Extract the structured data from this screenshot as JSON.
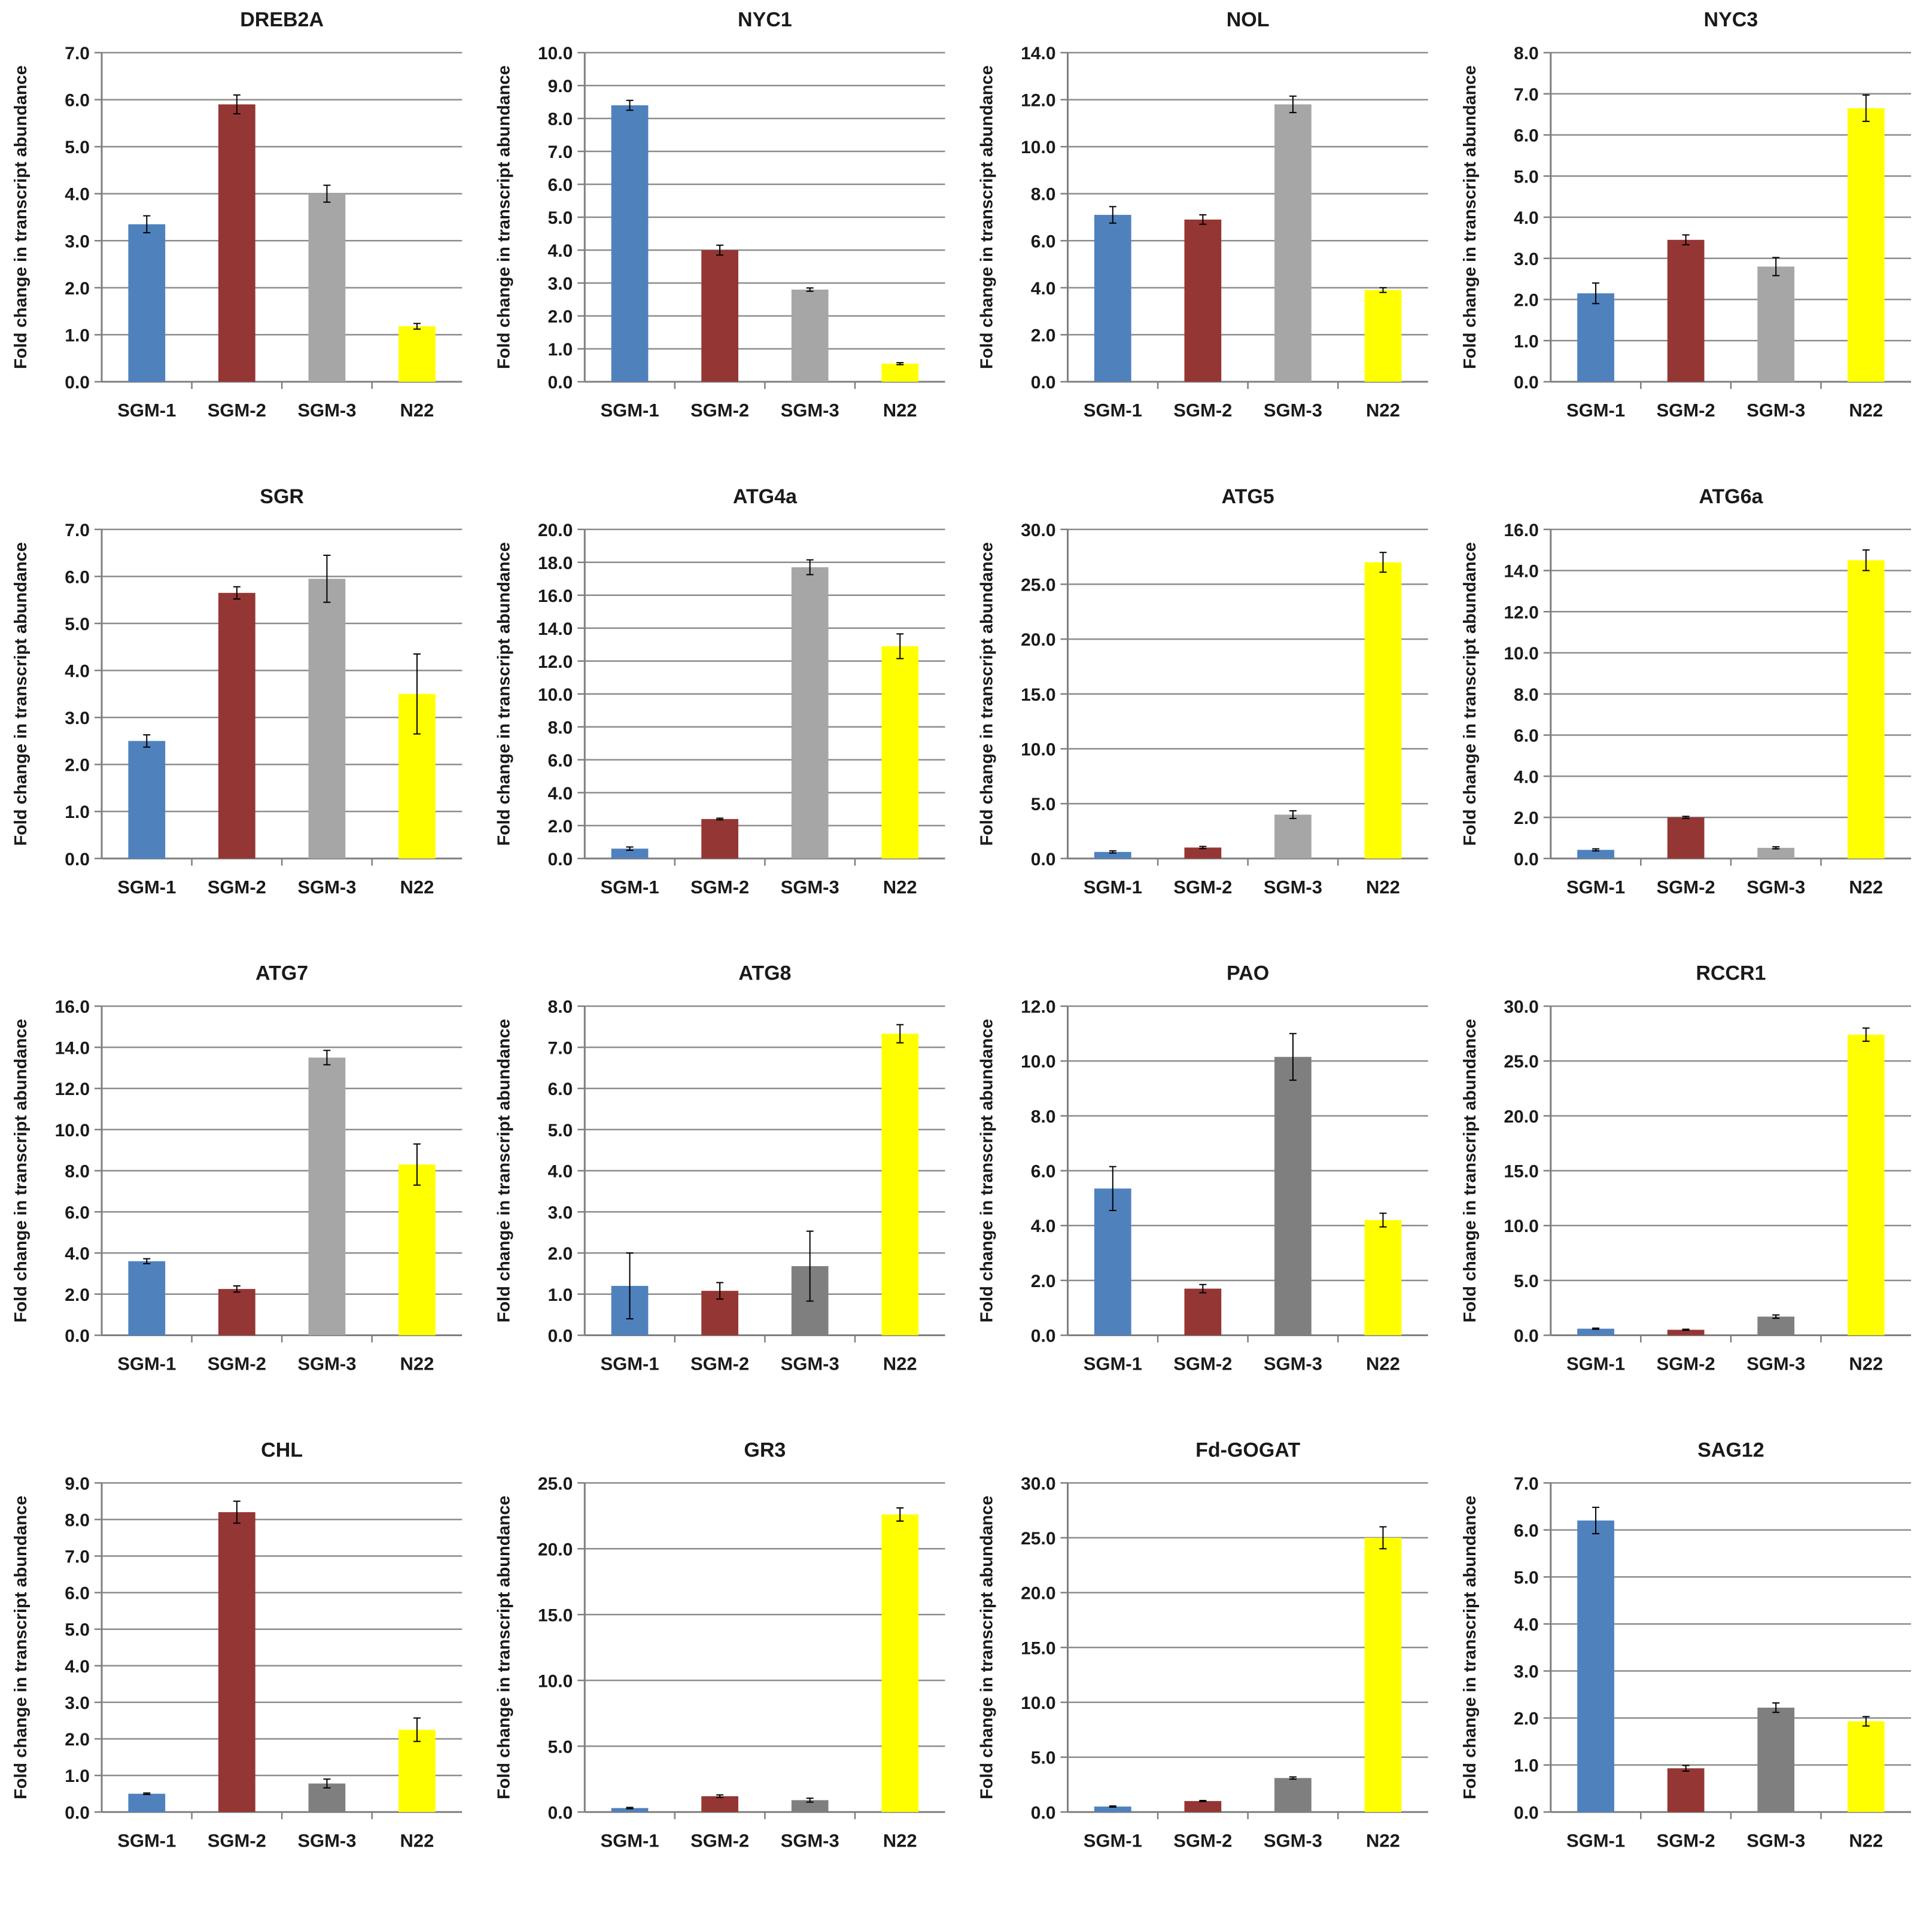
{
  "figure_caption": "",
  "colors": {
    "SGM-1": "#4F81BD",
    "SGM-2": "#943634",
    "SGM-3_light": "#A6A6A6",
    "SGM-3_dark": "#7F7F7F",
    "N22": "#FFFF00",
    "gridline": "#8C8C8C",
    "axis": "#7F7F7F",
    "text": "#1A1A1A"
  },
  "chart_data": [
    {
      "type": "bar",
      "title": "DREB2A",
      "ylabel": "Fold change in transcript abundance",
      "categories": [
        "SGM-1",
        "SGM-2",
        "SGM-3",
        "N22"
      ],
      "values": [
        3.35,
        5.9,
        4.0,
        1.18
      ],
      "errors": [
        0.18,
        0.2,
        0.18,
        0.06
      ],
      "ylim": [
        0,
        7
      ],
      "ystep": 1,
      "sgm3_color": "light"
    },
    {
      "type": "bar",
      "title": "NYC1",
      "ylabel": "Fold change in transcript abundance",
      "categories": [
        "SGM-1",
        "SGM-2",
        "SGM-3",
        "N22"
      ],
      "values": [
        8.4,
        4.0,
        2.8,
        0.55
      ],
      "errors": [
        0.15,
        0.15,
        0.05,
        0.03
      ],
      "ylim": [
        0,
        10
      ],
      "ystep": 1,
      "sgm3_color": "light"
    },
    {
      "type": "bar",
      "title": "NOL",
      "ylabel": "Fold change in transcript abundance",
      "categories": [
        "SGM-1",
        "SGM-2",
        "SGM-3",
        "N22"
      ],
      "values": [
        7.1,
        6.9,
        11.8,
        3.9
      ],
      "errors": [
        0.35,
        0.2,
        0.35,
        0.1
      ],
      "ylim": [
        0,
        14
      ],
      "ystep": 2,
      "sgm3_color": "light"
    },
    {
      "type": "bar",
      "title": "NYC3",
      "ylabel": "Fold change in transcript abundance",
      "categories": [
        "SGM-1",
        "SGM-2",
        "SGM-3",
        "N22"
      ],
      "values": [
        2.15,
        3.45,
        2.8,
        6.65
      ],
      "errors": [
        0.25,
        0.12,
        0.22,
        0.32
      ],
      "ylim": [
        0,
        8
      ],
      "ystep": 1,
      "sgm3_color": "light"
    },
    {
      "type": "bar",
      "title": "SGR",
      "ylabel": "Fold change in transcript abundance",
      "categories": [
        "SGM-1",
        "SGM-2",
        "SGM-3",
        "N22"
      ],
      "values": [
        2.5,
        5.65,
        5.95,
        3.5
      ],
      "errors": [
        0.13,
        0.13,
        0.5,
        0.85
      ],
      "ylim": [
        0,
        7
      ],
      "ystep": 1,
      "sgm3_color": "light"
    },
    {
      "type": "bar",
      "title": "ATG4a",
      "ylabel": "Fold change in transcript abundance",
      "categories": [
        "SGM-1",
        "SGM-2",
        "SGM-3",
        "N22"
      ],
      "values": [
        0.6,
        2.4,
        17.7,
        12.9
      ],
      "errors": [
        0.1,
        0.05,
        0.45,
        0.75
      ],
      "ylim": [
        0,
        20
      ],
      "ystep": 2,
      "sgm3_color": "light"
    },
    {
      "type": "bar",
      "title": "ATG5",
      "ylabel": "Fold change in transcript abundance",
      "categories": [
        "SGM-1",
        "SGM-2",
        "SGM-3",
        "N22"
      ],
      "values": [
        0.6,
        1.0,
        4.0,
        27.0
      ],
      "errors": [
        0.1,
        0.1,
        0.35,
        0.9
      ],
      "ylim": [
        0,
        30
      ],
      "ystep": 5,
      "sgm3_color": "light"
    },
    {
      "type": "bar",
      "title": "ATG6a",
      "ylabel": "Fold change in transcript abundance",
      "categories": [
        "SGM-1",
        "SGM-2",
        "SGM-3",
        "N22"
      ],
      "values": [
        0.42,
        2.0,
        0.52,
        14.5
      ],
      "errors": [
        0.05,
        0.05,
        0.05,
        0.5
      ],
      "ylim": [
        0,
        16
      ],
      "ystep": 2,
      "sgm3_color": "light"
    },
    {
      "type": "bar",
      "title": "ATG7",
      "ylabel": "Fold change in transcript abundance",
      "categories": [
        "SGM-1",
        "SGM-2",
        "SGM-3",
        "N22"
      ],
      "values": [
        3.6,
        2.25,
        13.5,
        8.3
      ],
      "errors": [
        0.12,
        0.15,
        0.35,
        1.0
      ],
      "ylim": [
        0,
        16
      ],
      "ystep": 2,
      "sgm3_color": "light"
    },
    {
      "type": "bar",
      "title": "ATG8",
      "ylabel": "Fold change in transcript abundance",
      "categories": [
        "SGM-1",
        "SGM-2",
        "SGM-3",
        "N22"
      ],
      "values": [
        1.2,
        1.08,
        1.68,
        7.33
      ],
      "errors": [
        0.8,
        0.2,
        0.85,
        0.22
      ],
      "ylim": [
        0,
        8
      ],
      "ystep": 1,
      "sgm3_color": "dark"
    },
    {
      "type": "bar",
      "title": "PAO",
      "ylabel": "Fold change in transcript abundance",
      "categories": [
        "SGM-1",
        "SGM-2",
        "SGM-3",
        "N22"
      ],
      "values": [
        5.35,
        1.7,
        10.15,
        4.2
      ],
      "errors": [
        0.8,
        0.15,
        0.85,
        0.25
      ],
      "ylim": [
        0,
        12
      ],
      "ystep": 2,
      "sgm3_color": "dark"
    },
    {
      "type": "bar",
      "title": "RCCR1",
      "ylabel": "Fold change in transcript abundance",
      "categories": [
        "SGM-1",
        "SGM-2",
        "SGM-3",
        "N22"
      ],
      "values": [
        0.6,
        0.5,
        1.7,
        27.4
      ],
      "errors": [
        0.05,
        0.05,
        0.15,
        0.6
      ],
      "ylim": [
        0,
        30
      ],
      "ystep": 5,
      "sgm3_color": "dark"
    },
    {
      "type": "bar",
      "title": "CHL",
      "ylabel": "Fold change in transcript abundance",
      "categories": [
        "SGM-1",
        "SGM-2",
        "SGM-3",
        "N22"
      ],
      "values": [
        0.5,
        8.2,
        0.78,
        2.25
      ],
      "errors": [
        0.02,
        0.3,
        0.12,
        0.32
      ],
      "ylim": [
        0,
        9
      ],
      "ystep": 1,
      "sgm3_color": "dark"
    },
    {
      "type": "bar",
      "title": "GR3",
      "ylabel": "Fold change in transcript abundance",
      "categories": [
        "SGM-1",
        "SGM-2",
        "SGM-3",
        "N22"
      ],
      "values": [
        0.3,
        1.2,
        0.9,
        22.6
      ],
      "errors": [
        0.05,
        0.1,
        0.15,
        0.5
      ],
      "ylim": [
        0,
        25
      ],
      "ystep": 5,
      "sgm3_color": "dark"
    },
    {
      "type": "bar",
      "title": "Fd-GOGAT",
      "ylabel": "Fold change in transcript abundance",
      "categories": [
        "SGM-1",
        "SGM-2",
        "SGM-3",
        "N22"
      ],
      "values": [
        0.5,
        1.0,
        3.1,
        25.0
      ],
      "errors": [
        0.05,
        0.05,
        0.1,
        1.0
      ],
      "ylim": [
        0,
        30
      ],
      "ystep": 5,
      "sgm3_color": "dark"
    },
    {
      "type": "bar",
      "title": "SAG12",
      "ylabel": "Fold change in transcript abundance",
      "categories": [
        "SGM-1",
        "SGM-2",
        "SGM-3",
        "N22"
      ],
      "values": [
        6.2,
        0.93,
        2.22,
        1.93
      ],
      "errors": [
        0.28,
        0.06,
        0.1,
        0.1
      ],
      "ylim": [
        0,
        7
      ],
      "ystep": 1,
      "sgm3_color": "dark"
    }
  ]
}
